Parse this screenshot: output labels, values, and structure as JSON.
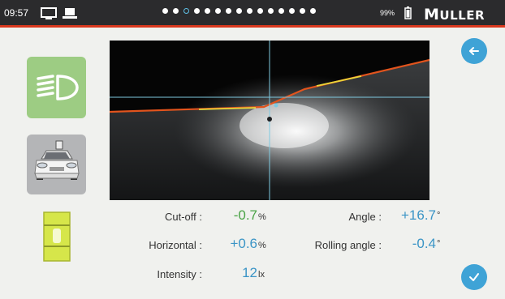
{
  "statusbar": {
    "time": "09:57",
    "battery_text": "99%",
    "brand": {
      "first": "M",
      "rest": "ULLER"
    },
    "page_dots": {
      "count": 15,
      "active_index": 2
    },
    "accent_line_color": "#d9381e"
  },
  "left_panel": {
    "headlight_tile": {
      "icon": "low-beam-headlight-icon",
      "color": "#9dcc83"
    },
    "vehicle_tile": {
      "icon": "car-front-icon",
      "color": "#b4b5b7"
    },
    "level_indicator": {
      "icon": "bubble-level-icon",
      "color": "#d6e64a"
    }
  },
  "beam_view": {
    "description_icons": [
      "crosshair",
      "cutoff-line"
    ]
  },
  "measurements": {
    "cutoff": {
      "label": "Cut-off :",
      "value": "-0.7",
      "unit": "%"
    },
    "horizontal": {
      "label": "Horizontal :",
      "value": "+0.6",
      "unit": "%"
    },
    "intensity": {
      "label": "Intensity :",
      "value": "12",
      "unit": "lx"
    },
    "angle": {
      "label": "Angle :",
      "value": "+16.7",
      "unit": "°"
    },
    "rolling_angle": {
      "label": "Rolling angle :",
      "value": "-0.4",
      "unit": "°"
    }
  },
  "actions": {
    "back_icon": "arrow-left-icon",
    "confirm_icon": "checkmark-icon",
    "accent_color": "#3fa3d6"
  }
}
